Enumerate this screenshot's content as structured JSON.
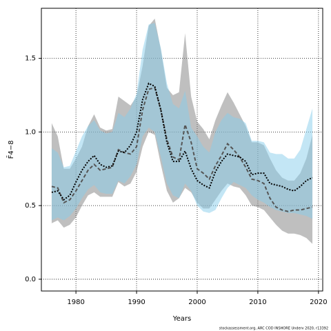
{
  "chart_data": {
    "type": "line",
    "xlabel": "Years",
    "ylabel": "F̄4−8",
    "footnote": "stockassessment.org, ARC COD INSHORE Underv 2020, r13392",
    "x": [
      1976,
      1977,
      1978,
      1979,
      1980,
      1981,
      1982,
      1983,
      1984,
      1985,
      1986,
      1987,
      1988,
      1989,
      1990,
      1991,
      1992,
      1993,
      1994,
      1995,
      1996,
      1997,
      1998,
      1999,
      2000,
      2001,
      2002,
      2003,
      2004,
      2005,
      2006,
      2007,
      2008,
      2009,
      2010,
      2011,
      2012,
      2013,
      2014,
      2015,
      2016,
      2017,
      2018,
      2019
    ],
    "xlim": [
      1974.3,
      2020.7
    ],
    "ylim": [
      -0.08,
      1.84
    ],
    "xticks": [
      1980,
      1990,
      2000,
      2010,
      2020
    ],
    "yticks": [
      {
        "value": 0,
        "label": "0.0"
      },
      0.5,
      {
        "value": 1,
        "label": "1.0"
      },
      1.5
    ],
    "grid": true,
    "series": [
      {
        "color": "#555555",
        "band_color": "#808080",
        "line_style": "dashed",
        "values": [
          0.63,
          0.62,
          0.52,
          0.54,
          0.6,
          0.67,
          0.74,
          0.78,
          0.74,
          0.75,
          0.76,
          0.88,
          0.86,
          0.85,
          0.9,
          1.15,
          1.29,
          1.3,
          1.15,
          0.95,
          0.83,
          0.81,
          1.05,
          0.93,
          0.75,
          0.72,
          0.68,
          0.77,
          0.84,
          0.92,
          0.88,
          0.83,
          0.76,
          0.68,
          0.67,
          0.65,
          0.55,
          0.49,
          0.47,
          0.46,
          0.47,
          0.47,
          0.48,
          0.49
        ],
        "lower": [
          0.38,
          0.4,
          0.35,
          0.37,
          0.42,
          0.5,
          0.57,
          0.59,
          0.56,
          0.56,
          0.56,
          0.66,
          0.63,
          0.65,
          0.73,
          0.9,
          1.0,
          0.98,
          0.78,
          0.6,
          0.52,
          0.55,
          0.62,
          0.59,
          0.52,
          0.48,
          0.48,
          0.54,
          0.6,
          0.65,
          0.63,
          0.62,
          0.57,
          0.5,
          0.49,
          0.47,
          0.42,
          0.37,
          0.33,
          0.31,
          0.31,
          0.3,
          0.28,
          0.24
        ],
        "upper": [
          1.06,
          0.97,
          0.75,
          0.75,
          0.82,
          0.9,
          1.04,
          1.12,
          1.03,
          1.01,
          1.02,
          1.24,
          1.21,
          1.18,
          1.24,
          1.45,
          1.72,
          1.77,
          1.56,
          1.3,
          1.25,
          1.27,
          1.67,
          1.24,
          1.07,
          1.02,
          0.95,
          1.08,
          1.18,
          1.27,
          1.2,
          1.12,
          1.04,
          0.93,
          0.93,
          0.91,
          0.82,
          0.74,
          0.69,
          0.67,
          0.67,
          0.72,
          0.82,
          0.98
        ]
      },
      {
        "color": "#000000",
        "band_color": "#87ceeb",
        "line_style": "dotted",
        "values": [
          0.59,
          0.6,
          0.54,
          0.57,
          0.66,
          0.74,
          0.8,
          0.84,
          0.78,
          0.76,
          0.77,
          0.87,
          0.86,
          0.91,
          1.0,
          1.22,
          1.33,
          1.31,
          1.15,
          0.93,
          0.8,
          0.8,
          0.87,
          0.75,
          0.67,
          0.64,
          0.62,
          0.73,
          0.8,
          0.85,
          0.84,
          0.83,
          0.8,
          0.71,
          0.72,
          0.72,
          0.65,
          0.64,
          0.63,
          0.61,
          0.6,
          0.63,
          0.67,
          0.69
        ],
        "lower": [
          0.4,
          0.42,
          0.4,
          0.43,
          0.48,
          0.55,
          0.61,
          0.64,
          0.59,
          0.58,
          0.58,
          0.67,
          0.65,
          0.7,
          0.78,
          0.97,
          1.03,
          1.0,
          0.83,
          0.65,
          0.57,
          0.55,
          0.65,
          0.6,
          0.5,
          0.46,
          0.45,
          0.47,
          0.55,
          0.62,
          0.66,
          0.64,
          0.62,
          0.57,
          0.54,
          0.52,
          0.49,
          0.47,
          0.46,
          0.45,
          0.45,
          0.44,
          0.43,
          0.41
        ],
        "upper": [
          0.89,
          0.86,
          0.76,
          0.77,
          0.87,
          0.97,
          1.04,
          1.08,
          1.01,
          0.99,
          1.0,
          1.13,
          1.1,
          1.16,
          1.26,
          1.56,
          1.73,
          1.74,
          1.57,
          1.33,
          1.19,
          1.16,
          1.28,
          1.03,
          0.97,
          0.9,
          0.86,
          1.0,
          1.08,
          1.13,
          1.1,
          1.09,
          1.06,
          0.94,
          0.94,
          0.93,
          0.86,
          0.85,
          0.85,
          0.82,
          0.82,
          0.88,
          1.02,
          1.16
        ]
      }
    ]
  }
}
